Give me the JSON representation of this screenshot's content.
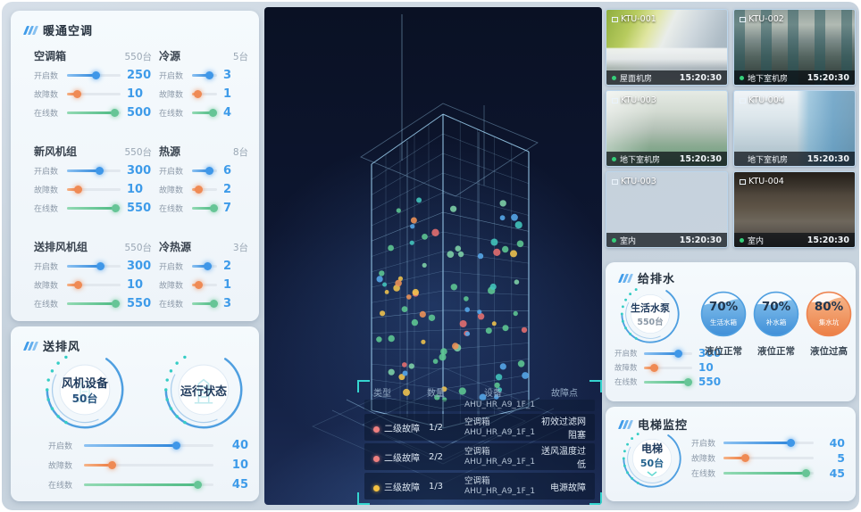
{
  "colors": {
    "accent_blue": "#3E9BE9",
    "accent_orange": "#EF8A54",
    "accent_green": "#66C596",
    "accent_teal": "#35CDC5",
    "alert_red": "#EF8080",
    "alert_yellow": "#F5C242",
    "panel_bg": "#F2F7FB",
    "board_bg": "#C8D3DE",
    "center_bg": "#0D1630"
  },
  "panels": {
    "hvac": {
      "title": "暖通空调",
      "groups": [
        {
          "name": "空调箱",
          "count": "550台",
          "sliders": [
            {
              "label": "开启数",
              "value": "250",
              "pct": 55
            },
            {
              "label": "故障数",
              "value": "10",
              "pct": 20
            },
            {
              "label": "在线数",
              "value": "500",
              "pct": 90
            }
          ]
        },
        {
          "name": "冷源",
          "count": "5台",
          "sliders": [
            {
              "label": "开启数",
              "value": "3",
              "pct": 72
            },
            {
              "label": "故障数",
              "value": "1",
              "pct": 25
            },
            {
              "label": "在线数",
              "value": "4",
              "pct": 86
            }
          ]
        },
        {
          "name": "新风机组",
          "count": "550台",
          "sliders": [
            {
              "label": "开启数",
              "value": "300",
              "pct": 62
            },
            {
              "label": "故障数",
              "value": "10",
              "pct": 22
            },
            {
              "label": "在线数",
              "value": "550",
              "pct": 92
            }
          ]
        },
        {
          "name": "热源",
          "count": "8台",
          "sliders": [
            {
              "label": "开启数",
              "value": "6",
              "pct": 70
            },
            {
              "label": "故障数",
              "value": "2",
              "pct": 28
            },
            {
              "label": "在线数",
              "value": "7",
              "pct": 88
            }
          ]
        },
        {
          "name": "送排风机组",
          "count": "550台",
          "sliders": [
            {
              "label": "开启数",
              "value": "300",
              "pct": 64
            },
            {
              "label": "故障数",
              "value": "10",
              "pct": 22
            },
            {
              "label": "在线数",
              "value": "550",
              "pct": 92
            }
          ]
        },
        {
          "name": "冷热源",
          "count": "3台",
          "sliders": [
            {
              "label": "开启数",
              "value": "2",
              "pct": 66
            },
            {
              "label": "故障数",
              "value": "1",
              "pct": 30
            },
            {
              "label": "在线数",
              "value": "3",
              "pct": 90
            }
          ]
        }
      ]
    },
    "fans": {
      "title": "送排风",
      "gauges": [
        {
          "title": "风机设备",
          "count": "50台"
        },
        {
          "title": "运行状态",
          "count": ""
        }
      ],
      "sliders": [
        {
          "label": "开启数",
          "value": "40",
          "pct": 72
        },
        {
          "label": "故障数",
          "value": "10",
          "pct": 22
        },
        {
          "label": "在线数",
          "value": "45",
          "pct": 88
        }
      ]
    },
    "water": {
      "title": "给排水",
      "gauge": {
        "title": "生活水泵",
        "count": "550台"
      },
      "sliders": [
        {
          "label": "开启数",
          "value": "300",
          "pct": 72
        },
        {
          "label": "故障数",
          "value": "10",
          "pct": 22
        },
        {
          "label": "在线数",
          "value": "550",
          "pct": 92
        }
      ],
      "tanks": [
        {
          "percent": "70%",
          "name": "生活水箱",
          "status": "液位正常",
          "theme": "blue"
        },
        {
          "percent": "70%",
          "name": "补水箱",
          "status": "液位正常",
          "theme": "blue"
        },
        {
          "percent": "80%",
          "name": "集水坑",
          "status": "液位过高",
          "theme": "orange"
        }
      ]
    },
    "elevator": {
      "title": "电梯监控",
      "gauge": {
        "title": "电梯",
        "count": "50台"
      },
      "sliders": [
        {
          "label": "开启数",
          "value": "40",
          "pct": 75
        },
        {
          "label": "故障数",
          "value": "5",
          "pct": 25
        },
        {
          "label": "在线数",
          "value": "45",
          "pct": 92
        }
      ]
    }
  },
  "cameras": [
    {
      "id": "KTU-001",
      "location": "屋面机房",
      "time": "15:20:30",
      "online": true
    },
    {
      "id": "KTU-002",
      "location": "地下室机房",
      "time": "15:20:30",
      "online": true
    },
    {
      "id": "KTU-003",
      "location": "地下室机房",
      "time": "15:20:30",
      "online": true
    },
    {
      "id": "KTU-004",
      "location": "地下室机房",
      "time": "15:20:30",
      "online": false
    },
    {
      "id": "KTU-003",
      "location": "室内",
      "time": "15:20:30",
      "online": true
    },
    {
      "id": "KTU-004",
      "location": "室内",
      "time": "15:20:30",
      "online": true
    }
  ],
  "fault_table": {
    "headers": [
      "类型",
      "数量",
      "设备",
      "故障点"
    ],
    "partial_device": "AHU_HR_A9_1F_1",
    "rows": [
      {
        "type": "二级故障",
        "severity": "red",
        "qty": "1/2",
        "device": "空调箱",
        "device_id": "AHU_HR_A9_1F_1",
        "fault": "初效过滤网阻塞"
      },
      {
        "type": "二级故障",
        "severity": "red",
        "qty": "2/2",
        "device": "空调箱",
        "device_id": "AHU_HR_A9_1F_1",
        "fault": "送风温度过低"
      },
      {
        "type": "三级故障",
        "severity": "yellow",
        "qty": "1/3",
        "device": "空调箱",
        "device_id": "AHU_HR_A9_1F_1",
        "fault": "电源故障"
      }
    ]
  }
}
